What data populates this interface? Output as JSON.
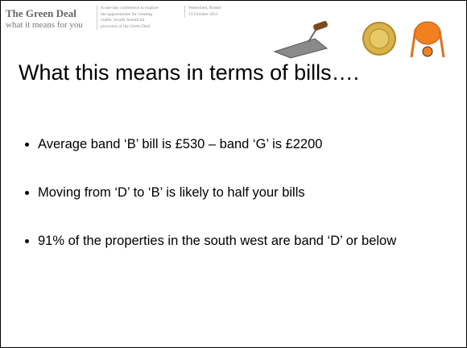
{
  "header": {
    "title": "The Green Deal",
    "subtitle": "what it means for you",
    "description": [
      "A one-day conference to explore",
      "the opportunities for creating",
      "viable, locally beneficial",
      "provision of the Green Deal"
    ],
    "venue": [
      "Watershed, Bristol",
      "13 October 2011"
    ]
  },
  "slide": {
    "title": "What this means in terms of bills….",
    "bullets": [
      "Average band ‘B’ bill is £530 – band ‘G’ is £2200",
      "Moving from ‘D’ to ‘B’ is likely to half your bills",
      "91% of the properties in the south west are band ‘D’ or below"
    ]
  }
}
